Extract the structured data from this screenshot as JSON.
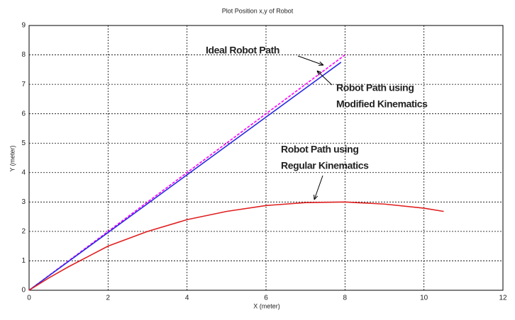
{
  "chart_data": {
    "type": "line",
    "title": "Plot Position x,y of Robot",
    "xlabel": "X (meter)",
    "ylabel": "Y (meter)",
    "xlim": [
      0,
      12
    ],
    "ylim": [
      0,
      9
    ],
    "xticks": [
      0,
      2,
      4,
      6,
      8,
      10,
      12
    ],
    "yticks": [
      0,
      1,
      2,
      3,
      4,
      5,
      6,
      7,
      8,
      9
    ],
    "grid": true,
    "series": [
      {
        "color": "#ff00ff",
        "dashed": true,
        "x": [
          0,
          8
        ],
        "values": [
          0,
          8
        ]
      },
      {
        "color": "#2a2ae0",
        "dashed": false,
        "x": [
          0,
          7.9
        ],
        "values": [
          0,
          7.75
        ]
      },
      {
        "color": "#e02020",
        "dashed": false,
        "x": [
          0,
          0.5,
          1,
          2,
          3,
          4,
          5,
          6,
          7,
          8,
          9,
          10,
          10.5
        ],
        "values": [
          0,
          0.42,
          0.8,
          1.5,
          2.0,
          2.4,
          2.68,
          2.88,
          2.98,
          3.0,
          2.93,
          2.79,
          2.68
        ]
      }
    ],
    "annotations": [
      {
        "lines": [
          "Ideal Robot Path"
        ]
      },
      {
        "lines": [
          "Robot Path using",
          "Modified Kinematics"
        ]
      },
      {
        "lines": [
          "Robot Path using",
          "Regular Kinematics"
        ]
      }
    ]
  }
}
